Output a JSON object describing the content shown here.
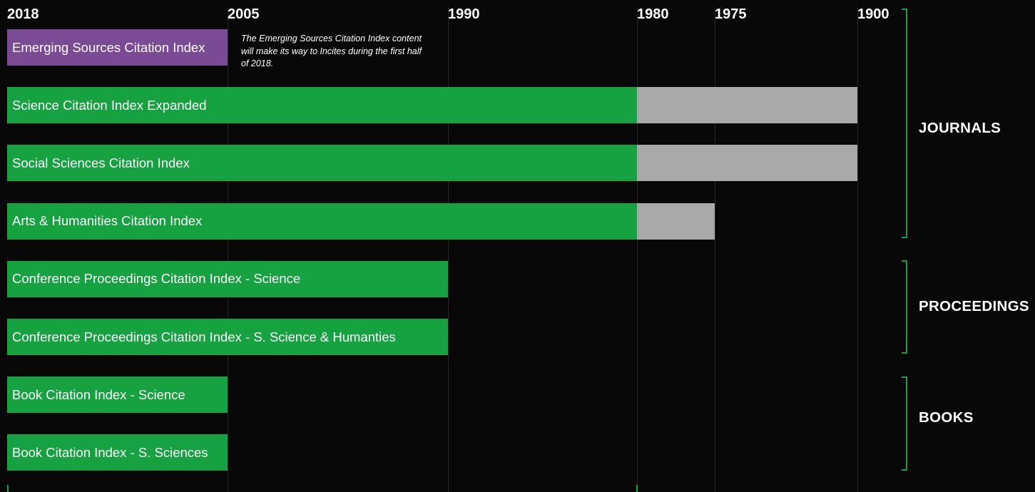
{
  "chart_data": {
    "type": "bar",
    "orientation": "horizontal",
    "x_axis": {
      "direction": "reversed",
      "tick_labels": [
        "2018",
        "2005",
        "1990",
        "1980",
        "1975",
        "1900"
      ],
      "tick_values": [
        2018,
        2005,
        1990,
        1980,
        1975,
        1900
      ]
    },
    "series": [
      {
        "name": "",
        "color": "#16a240",
        "categories": [
          "Emerging Sources Citation Index",
          "Science Citation Index Expanded",
          "Social Sciences Citation Index",
          "Arts & Humanities Citation Index",
          "Conference Proceedings Citation Index - Science",
          "Conference Proceedings Citation Index - S. Science & Humanties",
          "Book Citation Index - Science",
          "Book Citation Index - S. Sciences"
        ],
        "start": [
          2018,
          2018,
          2018,
          2018,
          2018,
          2018,
          2018,
          2018
        ],
        "end": [
          2005,
          1980,
          1980,
          1980,
          1990,
          1990,
          2005,
          2005
        ]
      },
      {
        "name": "",
        "color": "#a9a9a9",
        "categories": [
          "Science Citation Index Expanded",
          "Social Sciences Citation Index",
          "Arts & Humanities Citation Index"
        ],
        "start": [
          1980,
          1980,
          1980
        ],
        "end": [
          1900,
          1900,
          1975
        ]
      }
    ],
    "highlight": {
      "category": "Emerging Sources Citation Index",
      "color": "#7b4a95"
    },
    "annotation": "The Emerging Sources Citation Index content will make its way to Incites during the first half of 2018.",
    "groups": [
      {
        "label": "JOURNALS",
        "categories": [
          "Emerging Sources Citation Index",
          "Science Citation Index Expanded",
          "Social Sciences Citation Index",
          "Arts & Humanities Citation Index"
        ]
      },
      {
        "label": "PROCEEDINGS",
        "categories": [
          "Conference Proceedings Citation Index - Science",
          "Conference Proceedings Citation Index - S. Science & Humanties"
        ]
      },
      {
        "label": "BOOKS",
        "categories": [
          "Book Citation Index - Science",
          "Book Citation Index - S. Sciences"
        ]
      }
    ],
    "grid": true,
    "background": "#080808"
  }
}
